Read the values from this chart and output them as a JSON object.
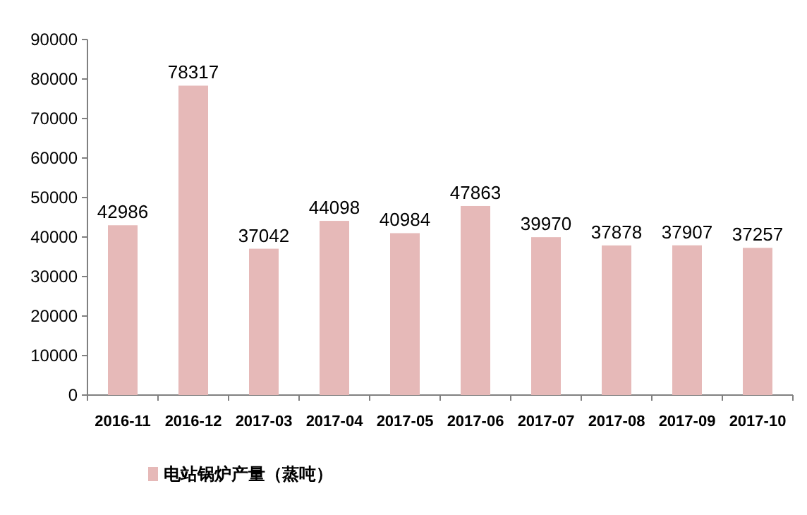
{
  "chart_data": {
    "type": "bar",
    "categories": [
      "2016-11",
      "2016-12",
      "2017-03",
      "2017-04",
      "2017-05",
      "2017-06",
      "2017-07",
      "2017-08",
      "2017-09",
      "2017-10"
    ],
    "series": [
      {
        "name": "电站锅炉产量（蒸吨）",
        "color": "#e6b9b8",
        "values": [
          42986,
          78317,
          37042,
          44098,
          40984,
          47863,
          39970,
          37878,
          37907,
          37257
        ]
      }
    ],
    "ylim": [
      0,
      90000
    ],
    "yticks": [
      0,
      10000,
      20000,
      30000,
      40000,
      50000,
      60000,
      70000,
      80000,
      90000
    ],
    "data_labels": true,
    "grid": false,
    "legend": "bottom left"
  }
}
